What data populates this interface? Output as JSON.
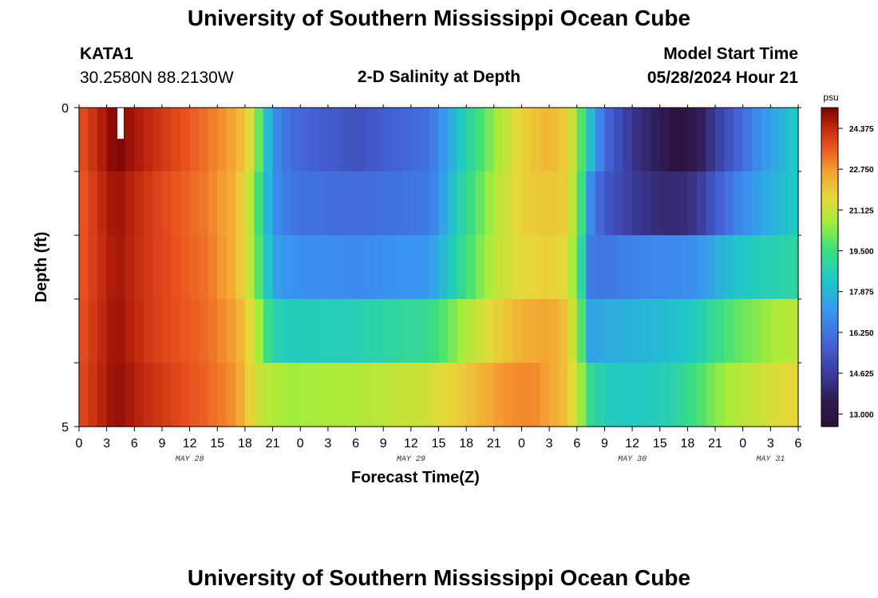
{
  "header": {
    "title": "University of Southern Mississippi Ocean Cube",
    "station_id": "KATA1",
    "station_coords": "30.2580N  88.2130W",
    "plot_title": "2-D Salinity at Depth",
    "model_start_label": "Model Start Time",
    "model_start_value": "05/28/2024 Hour 21"
  },
  "footer": {
    "title": "University of Southern Mississippi Ocean Cube"
  },
  "chart_data": {
    "type": "heatmap",
    "title": "2-D Salinity at Depth",
    "xlabel": "Forecast Time(Z)",
    "ylabel": "Depth (ft)",
    "y_range": [
      0,
      5
    ],
    "y_tick_labels": [
      "0",
      "5"
    ],
    "depth_layers": 5,
    "x_start_hour": 0,
    "x_end_hour": 78,
    "x_tick_labels": [
      "0",
      "3",
      "6",
      "9",
      "12",
      "15",
      "18",
      "21",
      "0",
      "3",
      "6",
      "9",
      "12",
      "15",
      "18",
      "21",
      "0",
      "3",
      "6",
      "9",
      "12",
      "15",
      "18",
      "21",
      "0",
      "3",
      "6"
    ],
    "x_tick_hours": [
      0,
      3,
      6,
      9,
      12,
      15,
      18,
      21,
      24,
      27,
      30,
      33,
      36,
      39,
      42,
      45,
      48,
      51,
      54,
      57,
      60,
      63,
      66,
      69,
      72,
      75,
      78
    ],
    "date_labels": [
      {
        "label": "MAY 28",
        "hour": 12
      },
      {
        "label": "MAY 29",
        "hour": 36
      },
      {
        "label": "MAY 30",
        "hour": 60
      },
      {
        "label": "MAY 31",
        "hour": 75
      }
    ],
    "current_time_marker_hour": 4.5,
    "colorbar": {
      "unit": "psu",
      "min": 12.5,
      "max": 25.2,
      "ticks": [
        "24.375",
        "22.750",
        "21.125",
        "19.500",
        "17.875",
        "16.250",
        "14.625",
        "13.000"
      ],
      "tick_values": [
        24.375,
        22.75,
        21.125,
        19.5,
        17.875,
        16.25,
        14.625,
        13.0
      ]
    },
    "layer_keyframes": [
      [
        [
          0,
          23.6
        ],
        [
          4,
          25.2
        ],
        [
          8,
          24.3
        ],
        [
          14,
          23.2
        ],
        [
          17,
          22.5
        ],
        [
          18.5,
          21.5
        ],
        [
          19.5,
          20.0
        ],
        [
          21,
          17.0
        ],
        [
          23,
          16.0
        ],
        [
          30,
          15.3
        ],
        [
          38,
          16.2
        ],
        [
          40,
          17.5
        ],
        [
          42,
          18.8
        ],
        [
          45,
          20.5
        ],
        [
          48,
          21.8
        ],
        [
          51,
          22.3
        ],
        [
          53,
          21.8
        ],
        [
          54.5,
          19.8
        ],
        [
          55.5,
          18.0
        ],
        [
          57,
          16.0
        ],
        [
          60,
          14.4
        ],
        [
          63,
          13.5
        ],
        [
          65,
          12.8
        ],
        [
          67,
          13.4
        ],
        [
          69,
          14.6
        ],
        [
          71,
          15.6
        ],
        [
          74,
          17.0
        ],
        [
          76,
          17.8
        ],
        [
          78,
          18.5
        ]
      ],
      [
        [
          0,
          23.5
        ],
        [
          4,
          24.9
        ],
        [
          8,
          24.0
        ],
        [
          14,
          23.1
        ],
        [
          17,
          22.3
        ],
        [
          18.5,
          21.0
        ],
        [
          19.5,
          19.6
        ],
        [
          21,
          17.0
        ],
        [
          23,
          16.3
        ],
        [
          30,
          16.0
        ],
        [
          38,
          16.4
        ],
        [
          40,
          17.8
        ],
        [
          42,
          19.2
        ],
        [
          45,
          20.8
        ],
        [
          48,
          21.8
        ],
        [
          51,
          22.0
        ],
        [
          53,
          21.8
        ],
        [
          54.5,
          19.5
        ],
        [
          55.5,
          16.8
        ],
        [
          57,
          15.5
        ],
        [
          60,
          14.6
        ],
        [
          63,
          14.0
        ],
        [
          65,
          14.0
        ],
        [
          67,
          14.4
        ],
        [
          69,
          15.5
        ],
        [
          71,
          16.5
        ],
        [
          74,
          17.5
        ],
        [
          76,
          18.0
        ],
        [
          78,
          18.5
        ]
      ],
      [
        [
          0,
          23.5
        ],
        [
          4,
          24.8
        ],
        [
          8,
          24.0
        ],
        [
          14,
          23.2
        ],
        [
          17,
          22.3
        ],
        [
          18.5,
          21.0
        ],
        [
          19.5,
          19.8
        ],
        [
          21,
          17.5
        ],
        [
          23,
          17.0
        ],
        [
          30,
          16.8
        ],
        [
          38,
          17.2
        ],
        [
          40,
          18.3
        ],
        [
          42,
          19.5
        ],
        [
          45,
          21.0
        ],
        [
          48,
          21.6
        ],
        [
          51,
          21.8
        ],
        [
          53,
          21.5
        ],
        [
          54.5,
          19.0
        ],
        [
          55.5,
          16.5
        ],
        [
          57,
          16.3
        ],
        [
          60,
          16.6
        ],
        [
          63,
          16.8
        ],
        [
          65,
          16.8
        ],
        [
          67,
          17.0
        ],
        [
          69,
          17.6
        ],
        [
          71,
          18.2
        ],
        [
          74,
          18.6
        ],
        [
          76,
          18.8
        ],
        [
          78,
          19.0
        ]
      ],
      [
        [
          0,
          23.6
        ],
        [
          4,
          24.9
        ],
        [
          8,
          24.0
        ],
        [
          14,
          23.3
        ],
        [
          17,
          22.6
        ],
        [
          18.5,
          21.6
        ],
        [
          19.5,
          20.6
        ],
        [
          21,
          18.8
        ],
        [
          23,
          18.5
        ],
        [
          30,
          18.7
        ],
        [
          38,
          19.3
        ],
        [
          40,
          20.0
        ],
        [
          42,
          20.8
        ],
        [
          45,
          21.7
        ],
        [
          48,
          22.4
        ],
        [
          51,
          22.6
        ],
        [
          53,
          22.0
        ],
        [
          54.5,
          19.8
        ],
        [
          55.5,
          17.4
        ],
        [
          57,
          17.6
        ],
        [
          60,
          17.8
        ],
        [
          63,
          18.0
        ],
        [
          65,
          18.2
        ],
        [
          67,
          18.6
        ],
        [
          69,
          19.3
        ],
        [
          71,
          19.9
        ],
        [
          74,
          20.4
        ],
        [
          76,
          20.8
        ],
        [
          78,
          21.0
        ]
      ],
      [
        [
          0,
          23.7
        ],
        [
          4,
          25.0
        ],
        [
          8,
          24.2
        ],
        [
          14,
          23.4
        ],
        [
          17,
          22.8
        ],
        [
          18.5,
          21.8
        ],
        [
          19.5,
          21.2
        ],
        [
          21,
          20.8
        ],
        [
          23,
          20.6
        ],
        [
          30,
          20.8
        ],
        [
          38,
          21.3
        ],
        [
          42,
          22.0
        ],
        [
          46,
          22.8
        ],
        [
          49,
          23.0
        ],
        [
          51,
          22.6
        ],
        [
          53,
          22.0
        ],
        [
          54.5,
          20.5
        ],
        [
          55.5,
          19.2
        ],
        [
          57,
          18.6
        ],
        [
          60,
          18.4
        ],
        [
          63,
          18.6
        ],
        [
          65,
          19.0
        ],
        [
          67,
          19.6
        ],
        [
          69,
          20.3
        ],
        [
          71,
          20.8
        ],
        [
          74,
          21.2
        ],
        [
          76,
          21.5
        ],
        [
          78,
          21.8
        ]
      ]
    ]
  }
}
